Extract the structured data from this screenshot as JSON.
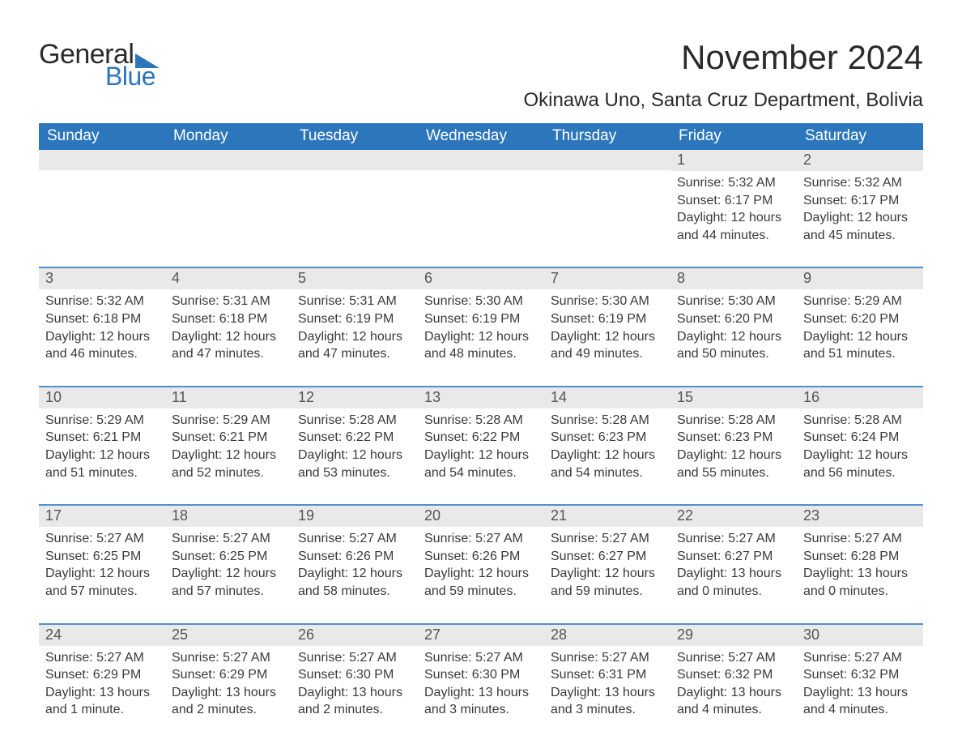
{
  "brand": {
    "word1": "General",
    "word2": "Blue",
    "logo_color": "#2c76bb"
  },
  "title": "November 2024",
  "location": "Okinawa Uno, Santa Cruz Department, Bolivia",
  "colors": {
    "header_bg": "#2c76bb",
    "header_text": "#ffffff",
    "cell_top_border": "#5290cc",
    "daynum_bg": "#e9e9e9",
    "body_text": "#3a3a3a",
    "page_bg": "#ffffff"
  },
  "typography": {
    "month_title_pt": 42,
    "location_pt": 24,
    "dayheader_pt": 19,
    "daynum_pt": 18,
    "body_pt": 16
  },
  "day_headers": [
    "Sunday",
    "Monday",
    "Tuesday",
    "Wednesday",
    "Thursday",
    "Friday",
    "Saturday"
  ],
  "weeks": [
    [
      {
        "empty": true
      },
      {
        "empty": true
      },
      {
        "empty": true
      },
      {
        "empty": true
      },
      {
        "empty": true
      },
      {
        "n": "1",
        "sunrise": "Sunrise: 5:32 AM",
        "sunset": "Sunset: 6:17 PM",
        "daylight": "Daylight: 12 hours and 44 minutes."
      },
      {
        "n": "2",
        "sunrise": "Sunrise: 5:32 AM",
        "sunset": "Sunset: 6:17 PM",
        "daylight": "Daylight: 12 hours and 45 minutes."
      }
    ],
    [
      {
        "n": "3",
        "sunrise": "Sunrise: 5:32 AM",
        "sunset": "Sunset: 6:18 PM",
        "daylight": "Daylight: 12 hours and 46 minutes."
      },
      {
        "n": "4",
        "sunrise": "Sunrise: 5:31 AM",
        "sunset": "Sunset: 6:18 PM",
        "daylight": "Daylight: 12 hours and 47 minutes."
      },
      {
        "n": "5",
        "sunrise": "Sunrise: 5:31 AM",
        "sunset": "Sunset: 6:19 PM",
        "daylight": "Daylight: 12 hours and 47 minutes."
      },
      {
        "n": "6",
        "sunrise": "Sunrise: 5:30 AM",
        "sunset": "Sunset: 6:19 PM",
        "daylight": "Daylight: 12 hours and 48 minutes."
      },
      {
        "n": "7",
        "sunrise": "Sunrise: 5:30 AM",
        "sunset": "Sunset: 6:19 PM",
        "daylight": "Daylight: 12 hours and 49 minutes."
      },
      {
        "n": "8",
        "sunrise": "Sunrise: 5:30 AM",
        "sunset": "Sunset: 6:20 PM",
        "daylight": "Daylight: 12 hours and 50 minutes."
      },
      {
        "n": "9",
        "sunrise": "Sunrise: 5:29 AM",
        "sunset": "Sunset: 6:20 PM",
        "daylight": "Daylight: 12 hours and 51 minutes."
      }
    ],
    [
      {
        "n": "10",
        "sunrise": "Sunrise: 5:29 AM",
        "sunset": "Sunset: 6:21 PM",
        "daylight": "Daylight: 12 hours and 51 minutes."
      },
      {
        "n": "11",
        "sunrise": "Sunrise: 5:29 AM",
        "sunset": "Sunset: 6:21 PM",
        "daylight": "Daylight: 12 hours and 52 minutes."
      },
      {
        "n": "12",
        "sunrise": "Sunrise: 5:28 AM",
        "sunset": "Sunset: 6:22 PM",
        "daylight": "Daylight: 12 hours and 53 minutes."
      },
      {
        "n": "13",
        "sunrise": "Sunrise: 5:28 AM",
        "sunset": "Sunset: 6:22 PM",
        "daylight": "Daylight: 12 hours and 54 minutes."
      },
      {
        "n": "14",
        "sunrise": "Sunrise: 5:28 AM",
        "sunset": "Sunset: 6:23 PM",
        "daylight": "Daylight: 12 hours and 54 minutes."
      },
      {
        "n": "15",
        "sunrise": "Sunrise: 5:28 AM",
        "sunset": "Sunset: 6:23 PM",
        "daylight": "Daylight: 12 hours and 55 minutes."
      },
      {
        "n": "16",
        "sunrise": "Sunrise: 5:28 AM",
        "sunset": "Sunset: 6:24 PM",
        "daylight": "Daylight: 12 hours and 56 minutes."
      }
    ],
    [
      {
        "n": "17",
        "sunrise": "Sunrise: 5:27 AM",
        "sunset": "Sunset: 6:25 PM",
        "daylight": "Daylight: 12 hours and 57 minutes."
      },
      {
        "n": "18",
        "sunrise": "Sunrise: 5:27 AM",
        "sunset": "Sunset: 6:25 PM",
        "daylight": "Daylight: 12 hours and 57 minutes."
      },
      {
        "n": "19",
        "sunrise": "Sunrise: 5:27 AM",
        "sunset": "Sunset: 6:26 PM",
        "daylight": "Daylight: 12 hours and 58 minutes."
      },
      {
        "n": "20",
        "sunrise": "Sunrise: 5:27 AM",
        "sunset": "Sunset: 6:26 PM",
        "daylight": "Daylight: 12 hours and 59 minutes."
      },
      {
        "n": "21",
        "sunrise": "Sunrise: 5:27 AM",
        "sunset": "Sunset: 6:27 PM",
        "daylight": "Daylight: 12 hours and 59 minutes."
      },
      {
        "n": "22",
        "sunrise": "Sunrise: 5:27 AM",
        "sunset": "Sunset: 6:27 PM",
        "daylight": "Daylight: 13 hours and 0 minutes."
      },
      {
        "n": "23",
        "sunrise": "Sunrise: 5:27 AM",
        "sunset": "Sunset: 6:28 PM",
        "daylight": "Daylight: 13 hours and 0 minutes."
      }
    ],
    [
      {
        "n": "24",
        "sunrise": "Sunrise: 5:27 AM",
        "sunset": "Sunset: 6:29 PM",
        "daylight": "Daylight: 13 hours and 1 minute."
      },
      {
        "n": "25",
        "sunrise": "Sunrise: 5:27 AM",
        "sunset": "Sunset: 6:29 PM",
        "daylight": "Daylight: 13 hours and 2 minutes."
      },
      {
        "n": "26",
        "sunrise": "Sunrise: 5:27 AM",
        "sunset": "Sunset: 6:30 PM",
        "daylight": "Daylight: 13 hours and 2 minutes."
      },
      {
        "n": "27",
        "sunrise": "Sunrise: 5:27 AM",
        "sunset": "Sunset: 6:30 PM",
        "daylight": "Daylight: 13 hours and 3 minutes."
      },
      {
        "n": "28",
        "sunrise": "Sunrise: 5:27 AM",
        "sunset": "Sunset: 6:31 PM",
        "daylight": "Daylight: 13 hours and 3 minutes."
      },
      {
        "n": "29",
        "sunrise": "Sunrise: 5:27 AM",
        "sunset": "Sunset: 6:32 PM",
        "daylight": "Daylight: 13 hours and 4 minutes."
      },
      {
        "n": "30",
        "sunrise": "Sunrise: 5:27 AM",
        "sunset": "Sunset: 6:32 PM",
        "daylight": "Daylight: 13 hours and 4 minutes."
      }
    ]
  ]
}
